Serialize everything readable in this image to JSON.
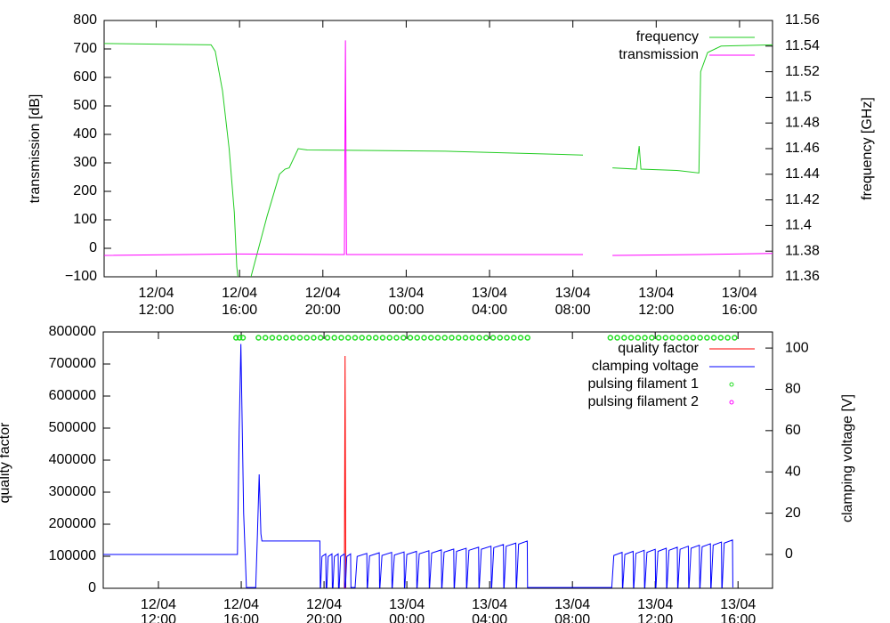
{
  "chart_data": [
    {
      "type": "line",
      "xlim": [
        "12/04 09:30",
        "13/04 17:35"
      ],
      "xticks": [
        "12/04 12:00",
        "12/04 16:00",
        "12/04 20:00",
        "13/04 00:00",
        "13/04 04:00",
        "13/04 08:00",
        "13/04 12:00",
        "13/04 16:00"
      ],
      "ylabel": "transmission [dB]",
      "ylim": [
        -100,
        800
      ],
      "yticks": [
        {
          "value": -100,
          "label": "−100"
        },
        0,
        100,
        200,
        300,
        400,
        500,
        600,
        700,
        800
      ],
      "y2label": "frequency [GHz]",
      "y2lim": [
        11.36,
        11.56
      ],
      "y2ticks": [
        11.36,
        11.38,
        11.4,
        11.42,
        11.44,
        11.46,
        11.48,
        11.5,
        11.52,
        11.54,
        11.56
      ],
      "legend": "top-right",
      "series": [
        {
          "name": "frequency",
          "color": "#22cc22",
          "axis": "y2",
          "x": [
            "12/04 09:30",
            "12/04 14:38",
            "12/04 14:50",
            "12/04 15:11",
            "12/04 15:30",
            "12/04 15:45",
            "12/04 15:52",
            "12/04 16:07",
            "12/04 16:15",
            "12/04 16:23",
            "12/04 16:33",
            "12/04 17:19",
            "12/04 17:55",
            "12/04 18:11",
            "12/04 18:23",
            "12/04 18:49",
            "12/04 19:15",
            "13/04 01:52",
            "13/04 08:29",
            "13/04 09:10",
            "13/04 09:54",
            "13/04 11:03",
            "13/04 11:11",
            "13/04 11:16",
            "13/04 12:59",
            "13/04 14:03",
            "13/04 14:08",
            "13/04 14:28",
            "13/04 15:07",
            "13/04 17:35"
          ],
          "values": [
            11.542,
            11.541,
            11.536,
            11.505,
            11.46,
            11.41,
            11.368,
            11.33,
            null,
            11.33,
            11.36,
            11.407,
            11.44,
            11.444,
            11.445,
            11.46,
            11.459,
            11.458,
            11.455,
            null,
            11.445,
            11.444,
            11.462,
            11.444,
            11.443,
            11.441,
            11.52,
            11.535,
            11.54,
            11.541
          ]
        },
        {
          "name": "transmission",
          "color": "#ff00ff",
          "x": [
            "12/04 09:30",
            "12/04 15:52",
            "12/04 21:02",
            "12/04 21:05",
            "12/04 21:08",
            "13/04 08:29",
            "13/04 09:10",
            "13/04 09:54",
            "13/04 14:03",
            "13/04 17:35"
          ],
          "values": [
            -25,
            -20,
            -22,
            730,
            -22,
            -22,
            null,
            -25,
            -22,
            -18
          ]
        }
      ]
    },
    {
      "type": "line",
      "xlim": [
        "12/04 09:20",
        "13/04 17:40"
      ],
      "xticks": [
        "12/04 12:00",
        "12/04 16:00",
        "12/04 20:00",
        "13/04 00:00",
        "13/04 04:00",
        "13/04 08:00",
        "13/04 12:00",
        "13/04 16:00"
      ],
      "ylabel": "quality factor",
      "ylim": [
        0,
        800000
      ],
      "yticks": [
        0,
        100000,
        200000,
        300000,
        400000,
        500000,
        600000,
        700000,
        800000
      ],
      "y2label": "clamping voltage [V]",
      "y2lim": [
        -16.4,
        107.8
      ],
      "y2ticks": [
        0,
        20,
        40,
        60,
        80,
        100
      ],
      "legend": "top-right",
      "series": [
        {
          "name": "quality factor",
          "color": "#ff0000",
          "x": [
            "12/04 20:59",
            "12/04 21:01",
            "12/04 21:03"
          ],
          "values": [
            0,
            725000,
            0
          ]
        },
        {
          "name": "clamping voltage",
          "color": "#0000ff",
          "axis": "y2",
          "x": [
            "12/04 09:20",
            "12/04 15:49",
            "12/04 15:54",
            "12/04 15:59",
            "12/04 16:07",
            "12/04 16:15",
            "12/04 16:42",
            "12/04 16:47",
            "12/04 16:52",
            "12/04 16:57",
            "12/04 17:00",
            "12/04 19:48",
            "12/04 19:49",
            "12/04 19:50",
            "12/04 19:54",
            "12/04 20:05",
            "12/04 20:06",
            "12/04 20:08",
            "12/04 20:12",
            "12/04 20:23",
            "12/04 20:24",
            "12/04 20:26",
            "12/04 20:30",
            "12/04 20:41",
            "12/04 20:42",
            "12/04 20:44",
            "12/04 20:48",
            "12/04 20:59",
            "12/04 21:00",
            "12/04 21:02",
            "12/04 21:06",
            "12/04 21:17",
            "12/04 21:18",
            "12/04 21:30",
            "12/04 21:36",
            "12/04 22:04",
            "12/04 22:05",
            "12/04 22:06",
            "12/04 22:12",
            "12/04 22:40",
            "12/04 22:41",
            "12/04 22:42",
            "12/04 22:48",
            "12/04 23:16",
            "12/04 23:17",
            "12/04 23:18",
            "12/04 23:24",
            "12/04 23:52",
            "12/04 23:53",
            "12/04 23:54",
            "13/04 00:00",
            "13/04 00:28",
            "13/04 00:29",
            "13/04 00:30",
            "13/04 00:36",
            "13/04 01:04",
            "13/04 01:05",
            "13/04 01:06",
            "13/04 01:12",
            "13/04 01:40",
            "13/04 01:41",
            "13/04 01:42",
            "13/04 01:48",
            "13/04 02:16",
            "13/04 02:17",
            "13/04 02:18",
            "13/04 02:24",
            "13/04 02:52",
            "13/04 02:53",
            "13/04 02:54",
            "13/04 03:00",
            "13/04 03:28",
            "13/04 03:29",
            "13/04 03:30",
            "13/04 03:36",
            "13/04 04:04",
            "13/04 04:05",
            "13/04 04:06",
            "13/04 04:12",
            "13/04 04:40",
            "13/04 04:41",
            "13/04 04:42",
            "13/04 04:48",
            "13/04 05:16",
            "13/04 05:17",
            "13/04 05:18",
            "13/04 05:24",
            "13/04 05:49",
            "13/04 05:50",
            "13/04 09:54",
            "13/04 10:00",
            "13/04 10:24",
            "13/04 10:25",
            "13/04 10:26",
            "13/04 10:32",
            "13/04 10:56",
            "13/04 10:57",
            "13/04 10:58",
            "13/04 11:04",
            "13/04 11:28",
            "13/04 11:29",
            "13/04 11:30",
            "13/04 11:36",
            "13/04 12:00",
            "13/04 12:01",
            "13/04 12:02",
            "13/04 12:08",
            "13/04 12:32",
            "13/04 12:33",
            "13/04 12:34",
            "13/04 12:40",
            "13/04 13:04",
            "13/04 13:05",
            "13/04 13:06",
            "13/04 13:12",
            "13/04 13:36",
            "13/04 13:37",
            "13/04 13:38",
            "13/04 13:44",
            "13/04 14:08",
            "13/04 14:09",
            "13/04 14:10",
            "13/04 14:16",
            "13/04 14:40",
            "13/04 14:41",
            "13/04 14:42",
            "13/04 14:48",
            "13/04 15:12",
            "13/04 15:13",
            "13/04 15:14",
            "13/04 15:20",
            "13/04 15:44",
            "13/04 15:45"
          ],
          "values": [
            0,
            0,
            60,
            102,
            20,
            -16,
            -16,
            10,
            38.8,
            10,
            6.5,
            6.5,
            -16,
            -16,
            -1,
            0.3,
            -16,
            -16,
            -1,
            0.3,
            -16,
            -16,
            -1,
            0.3,
            -16,
            -16,
            -1,
            0.3,
            -16,
            -16,
            -1,
            0.3,
            -16,
            -16,
            -1,
            0.5,
            -16,
            -16,
            -0.7,
            0.8,
            -16,
            -16,
            -0.5,
            1,
            -16,
            -16,
            -0.3,
            1.2,
            -16,
            -16,
            0,
            1.5,
            -16,
            -16,
            0.3,
            1.8,
            -16,
            -16,
            0.7,
            2.2,
            -16,
            -16,
            1.1,
            2.6,
            -16,
            -16,
            1.5,
            3,
            -16,
            -16,
            2,
            3.5,
            -16,
            -16,
            2.5,
            4,
            -16,
            -16,
            3.3,
            4.8,
            -16,
            -16,
            4,
            5.5,
            -16,
            -16,
            5,
            6.5,
            -16,
            -16,
            -0.5,
            1,
            -16,
            -16,
            0,
            1.5,
            -16,
            -16,
            0.5,
            2,
            -16,
            -16,
            1,
            2.5,
            -16,
            -16,
            1.5,
            3,
            -16,
            -16,
            2,
            3.5,
            -16,
            -16,
            2.5,
            4,
            -16,
            -16,
            3,
            4.5,
            -16,
            -16,
            3.7,
            5.2,
            -16,
            -16,
            4.5,
            6,
            -16,
            -16,
            5.5,
            7,
            -16
          ]
        },
        {
          "name": "pulsing filament 1",
          "color": "#22dd22",
          "axis": "y2",
          "type": "scatter",
          "x": [
            "12/04 15:45",
            "12/04 15:55",
            "12/04 16:05",
            "12/04 16:50",
            "12/04 17:10",
            "12/04 17:30",
            "12/04 17:50",
            "12/04 18:10",
            "12/04 18:30",
            "12/04 18:50",
            "12/04 19:10",
            "12/04 19:30",
            "12/04 19:50",
            "12/04 20:10",
            "12/04 20:30",
            "12/04 20:50",
            "12/04 21:10",
            "12/04 21:30",
            "12/04 21:50",
            "12/04 22:10",
            "12/04 22:30",
            "12/04 22:50",
            "12/04 23:10",
            "12/04 23:30",
            "12/04 23:50",
            "13/04 00:10",
            "13/04 00:30",
            "13/04 00:50",
            "13/04 01:10",
            "13/04 01:30",
            "13/04 01:50",
            "13/04 02:10",
            "13/04 02:30",
            "13/04 02:50",
            "13/04 03:10",
            "13/04 03:30",
            "13/04 03:50",
            "13/04 04:10",
            "13/04 04:30",
            "13/04 04:50",
            "13/04 05:10",
            "13/04 05:30",
            "13/04 05:50",
            "13/04 09:50",
            "13/04 10:10",
            "13/04 10:30",
            "13/04 10:50",
            "13/04 11:10",
            "13/04 11:30",
            "13/04 11:50",
            "13/04 12:10",
            "13/04 12:30",
            "13/04 12:50",
            "13/04 13:10",
            "13/04 13:30",
            "13/04 13:50",
            "13/04 14:10",
            "13/04 14:30",
            "13/04 14:50",
            "13/04 15:10",
            "13/04 15:30",
            "13/04 15:50"
          ],
          "values": [
            105,
            105,
            105,
            105,
            105,
            105,
            105,
            105,
            105,
            105,
            105,
            105,
            105,
            105,
            105,
            105,
            105,
            105,
            105,
            105,
            105,
            105,
            105,
            105,
            105,
            105,
            105,
            105,
            105,
            105,
            105,
            105,
            105,
            105,
            105,
            105,
            105,
            105,
            105,
            105,
            105,
            105,
            105,
            105,
            105,
            105,
            105,
            105,
            105,
            105,
            105,
            105,
            105,
            105,
            105,
            105,
            105,
            105,
            105,
            105,
            105,
            105
          ]
        },
        {
          "name": "pulsing filament 2",
          "color": "#ff00ff",
          "axis": "y2",
          "type": "scatter",
          "x": [],
          "values": []
        }
      ]
    }
  ]
}
